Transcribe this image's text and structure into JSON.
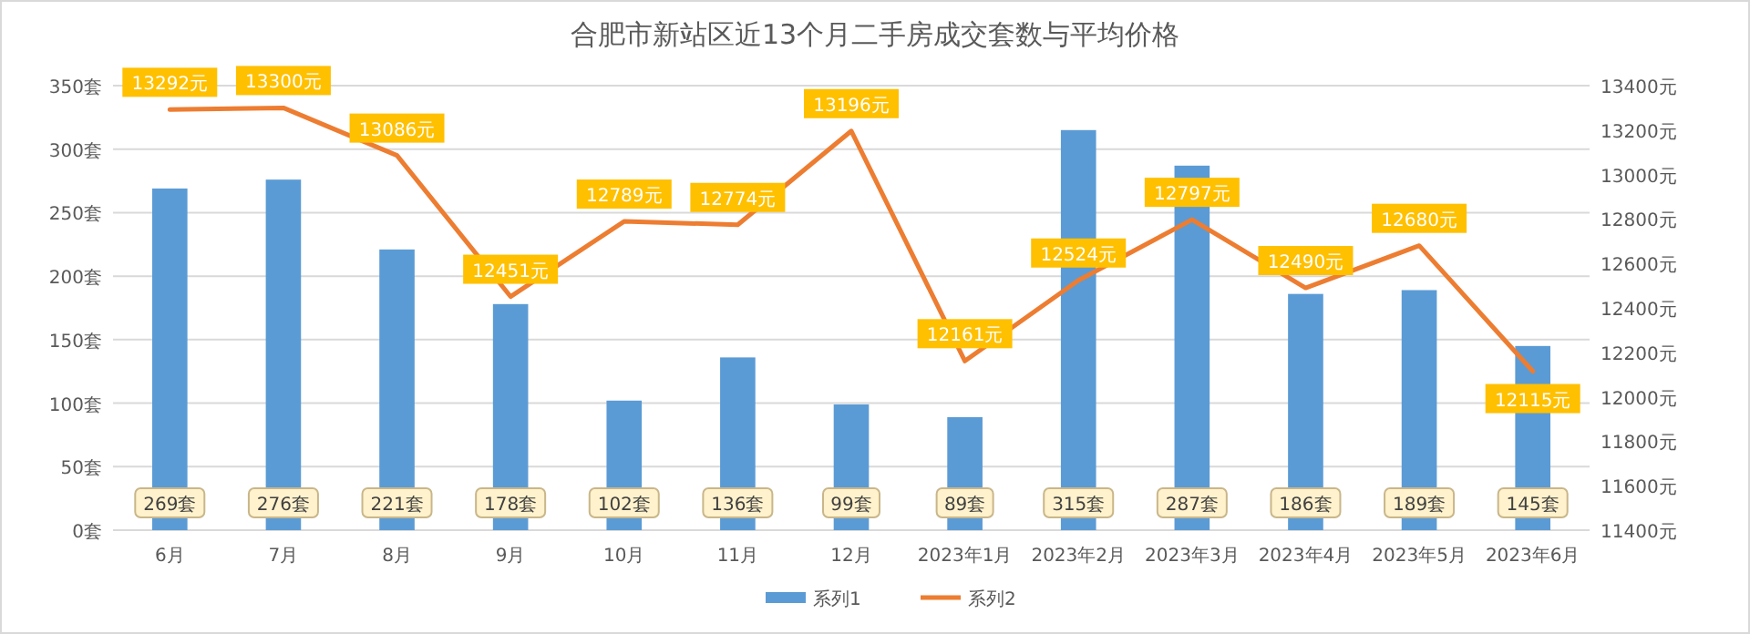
{
  "chart_data": {
    "type": "bar",
    "title": "合肥市新站区近13个月二手房成交套数与平均价格",
    "categories": [
      "6月",
      "7月",
      "8月",
      "9月",
      "10月",
      "11月",
      "12月",
      "2023年1月",
      "2023年2月",
      "2023年3月",
      "2023年4月",
      "2023年5月",
      "2023年6月"
    ],
    "series": [
      {
        "name": "系列1",
        "color": "#5b9bd5",
        "values": [
          269,
          276,
          221,
          178,
          102,
          136,
          99,
          89,
          315,
          287,
          186,
          189,
          145
        ],
        "value_labels": [
          "269套",
          "276套",
          "221套",
          "178套",
          "102套",
          "136套",
          "99套",
          "89套",
          "315套",
          "287套",
          "186套",
          "189套",
          "145套"
        ]
      },
      {
        "name": "系列2",
        "type": "line",
        "axis": "y2",
        "color": "#ed7d31",
        "values": [
          13292,
          13300,
          13086,
          12451,
          12789,
          12774,
          13196,
          12161,
          12524,
          12797,
          12490,
          12680,
          12115
        ],
        "value_labels": [
          "13292元",
          "13300元",
          "13086元",
          "12451元",
          "12789元",
          "12774元",
          "13196元",
          "12161元",
          "12524元",
          "12797元",
          "12490元",
          "12680元",
          "12115元"
        ]
      }
    ],
    "ylim": [
      0,
      350
    ],
    "yticks": [
      {
        "value": 0,
        "label": "0套"
      },
      {
        "value": 50,
        "label": "50套"
      },
      {
        "value": 100,
        "label": "100套"
      },
      {
        "value": 150,
        "label": "150套"
      },
      {
        "value": 200,
        "label": "200套"
      },
      {
        "value": 250,
        "label": "250套"
      },
      {
        "value": 300,
        "label": "300套"
      },
      {
        "value": 350,
        "label": "350套"
      }
    ],
    "y2lim": [
      11400,
      13400
    ],
    "y2ticks": [
      {
        "value": 11400,
        "label": "11400元"
      },
      {
        "value": 11600,
        "label": "11600元"
      },
      {
        "value": 11800,
        "label": "11800元"
      },
      {
        "value": 12000,
        "label": "12000元"
      },
      {
        "value": 12200,
        "label": "12200元"
      },
      {
        "value": 12400,
        "label": "12400元"
      },
      {
        "value": 12600,
        "label": "12600元"
      },
      {
        "value": 12800,
        "label": "12800元"
      },
      {
        "value": 13000,
        "label": "13000元"
      },
      {
        "value": 13200,
        "label": "13200元"
      },
      {
        "value": 13400,
        "label": "13400元"
      }
    ],
    "grid": "y",
    "legend": "bottom"
  }
}
